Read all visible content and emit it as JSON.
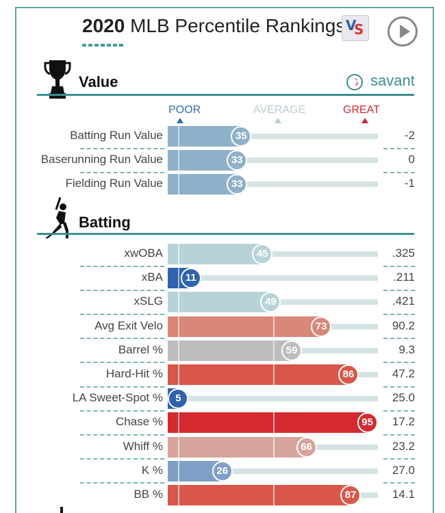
{
  "header": {
    "title_bold": "2020",
    "title_rest": "MLB Percentile Rankings"
  },
  "sections": {
    "value_title": "Value",
    "batting_title": "Batting"
  },
  "brand": {
    "savant_text": "savant"
  },
  "scale": {
    "poor": "POOR",
    "average": "AVERAGE",
    "great": "GREAT",
    "poor_color": "#2f6db0",
    "average_color": "#b7cfcf",
    "great_color": "#cf2a2f"
  },
  "chart_data": [
    {
      "type": "bar",
      "title": "Value",
      "xlim": [
        0,
        100
      ],
      "categories": [
        "Batting Run Value",
        "Baserunning Run Value",
        "Fielding Run Value"
      ],
      "percentiles": [
        35,
        33,
        33
      ],
      "stat_values": [
        "-2",
        "0",
        "-1"
      ],
      "colors": [
        "#8fb0c9",
        "#8fb0c9",
        "#8fb0c9"
      ]
    },
    {
      "type": "bar",
      "title": "Batting",
      "xlim": [
        0,
        100
      ],
      "categories": [
        "xwOBA",
        "xBA",
        "xSLG",
        "Avg Exit Velo",
        "Barrel %",
        "Hard-Hit %",
        "LA Sweet-Spot %",
        "Chase %",
        "Whiff %",
        "K %",
        "BB %"
      ],
      "percentiles": [
        45,
        11,
        49,
        73,
        59,
        86,
        5,
        95,
        66,
        26,
        87
      ],
      "stat_values": [
        ".325",
        ".211",
        ".421",
        "90.2",
        "9.3",
        "47.2",
        "25.0",
        "17.2",
        "23.2",
        "27.0",
        "14.1"
      ],
      "colors": [
        "#b7d3d8",
        "#2f63b0",
        "#b7d3d8",
        "#d98778",
        "#bdbdbd",
        "#d9574a",
        "#2f63b0",
        "#d52a2f",
        "#d6a49c",
        "#7f9fc6",
        "#d9574a"
      ]
    }
  ]
}
